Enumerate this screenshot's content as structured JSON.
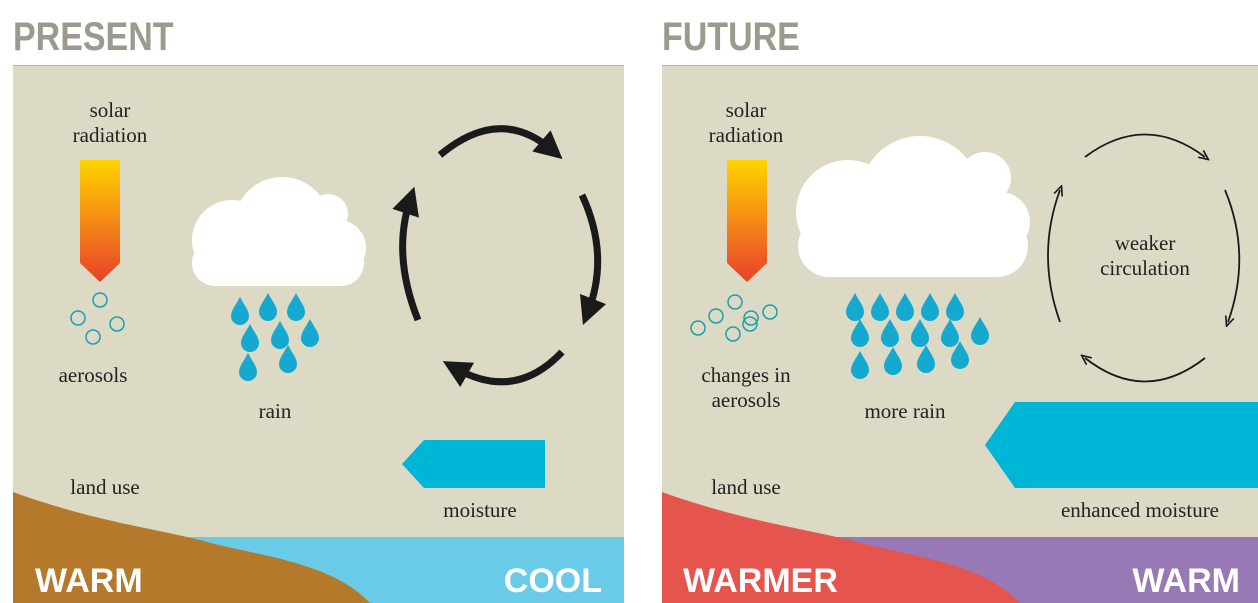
{
  "panels": [
    {
      "title": "PRESENT",
      "solar_radiation": [
        "solar",
        "radiation"
      ],
      "aerosols": [
        "aerosols"
      ],
      "rain": "rain",
      "land_use": "land use",
      "moisture": "moisture",
      "left_band": "WARM",
      "right_band": "COOL"
    },
    {
      "title": "FUTURE",
      "solar_radiation": [
        "solar",
        "radiation"
      ],
      "aerosols": [
        "changes in",
        "aerosols"
      ],
      "rain": "more rain",
      "circulation": [
        "weaker",
        "circulation"
      ],
      "land_use": "land use",
      "moisture": "enhanced moisture",
      "left_band": "WARMER",
      "right_band": "WARM"
    }
  ]
}
